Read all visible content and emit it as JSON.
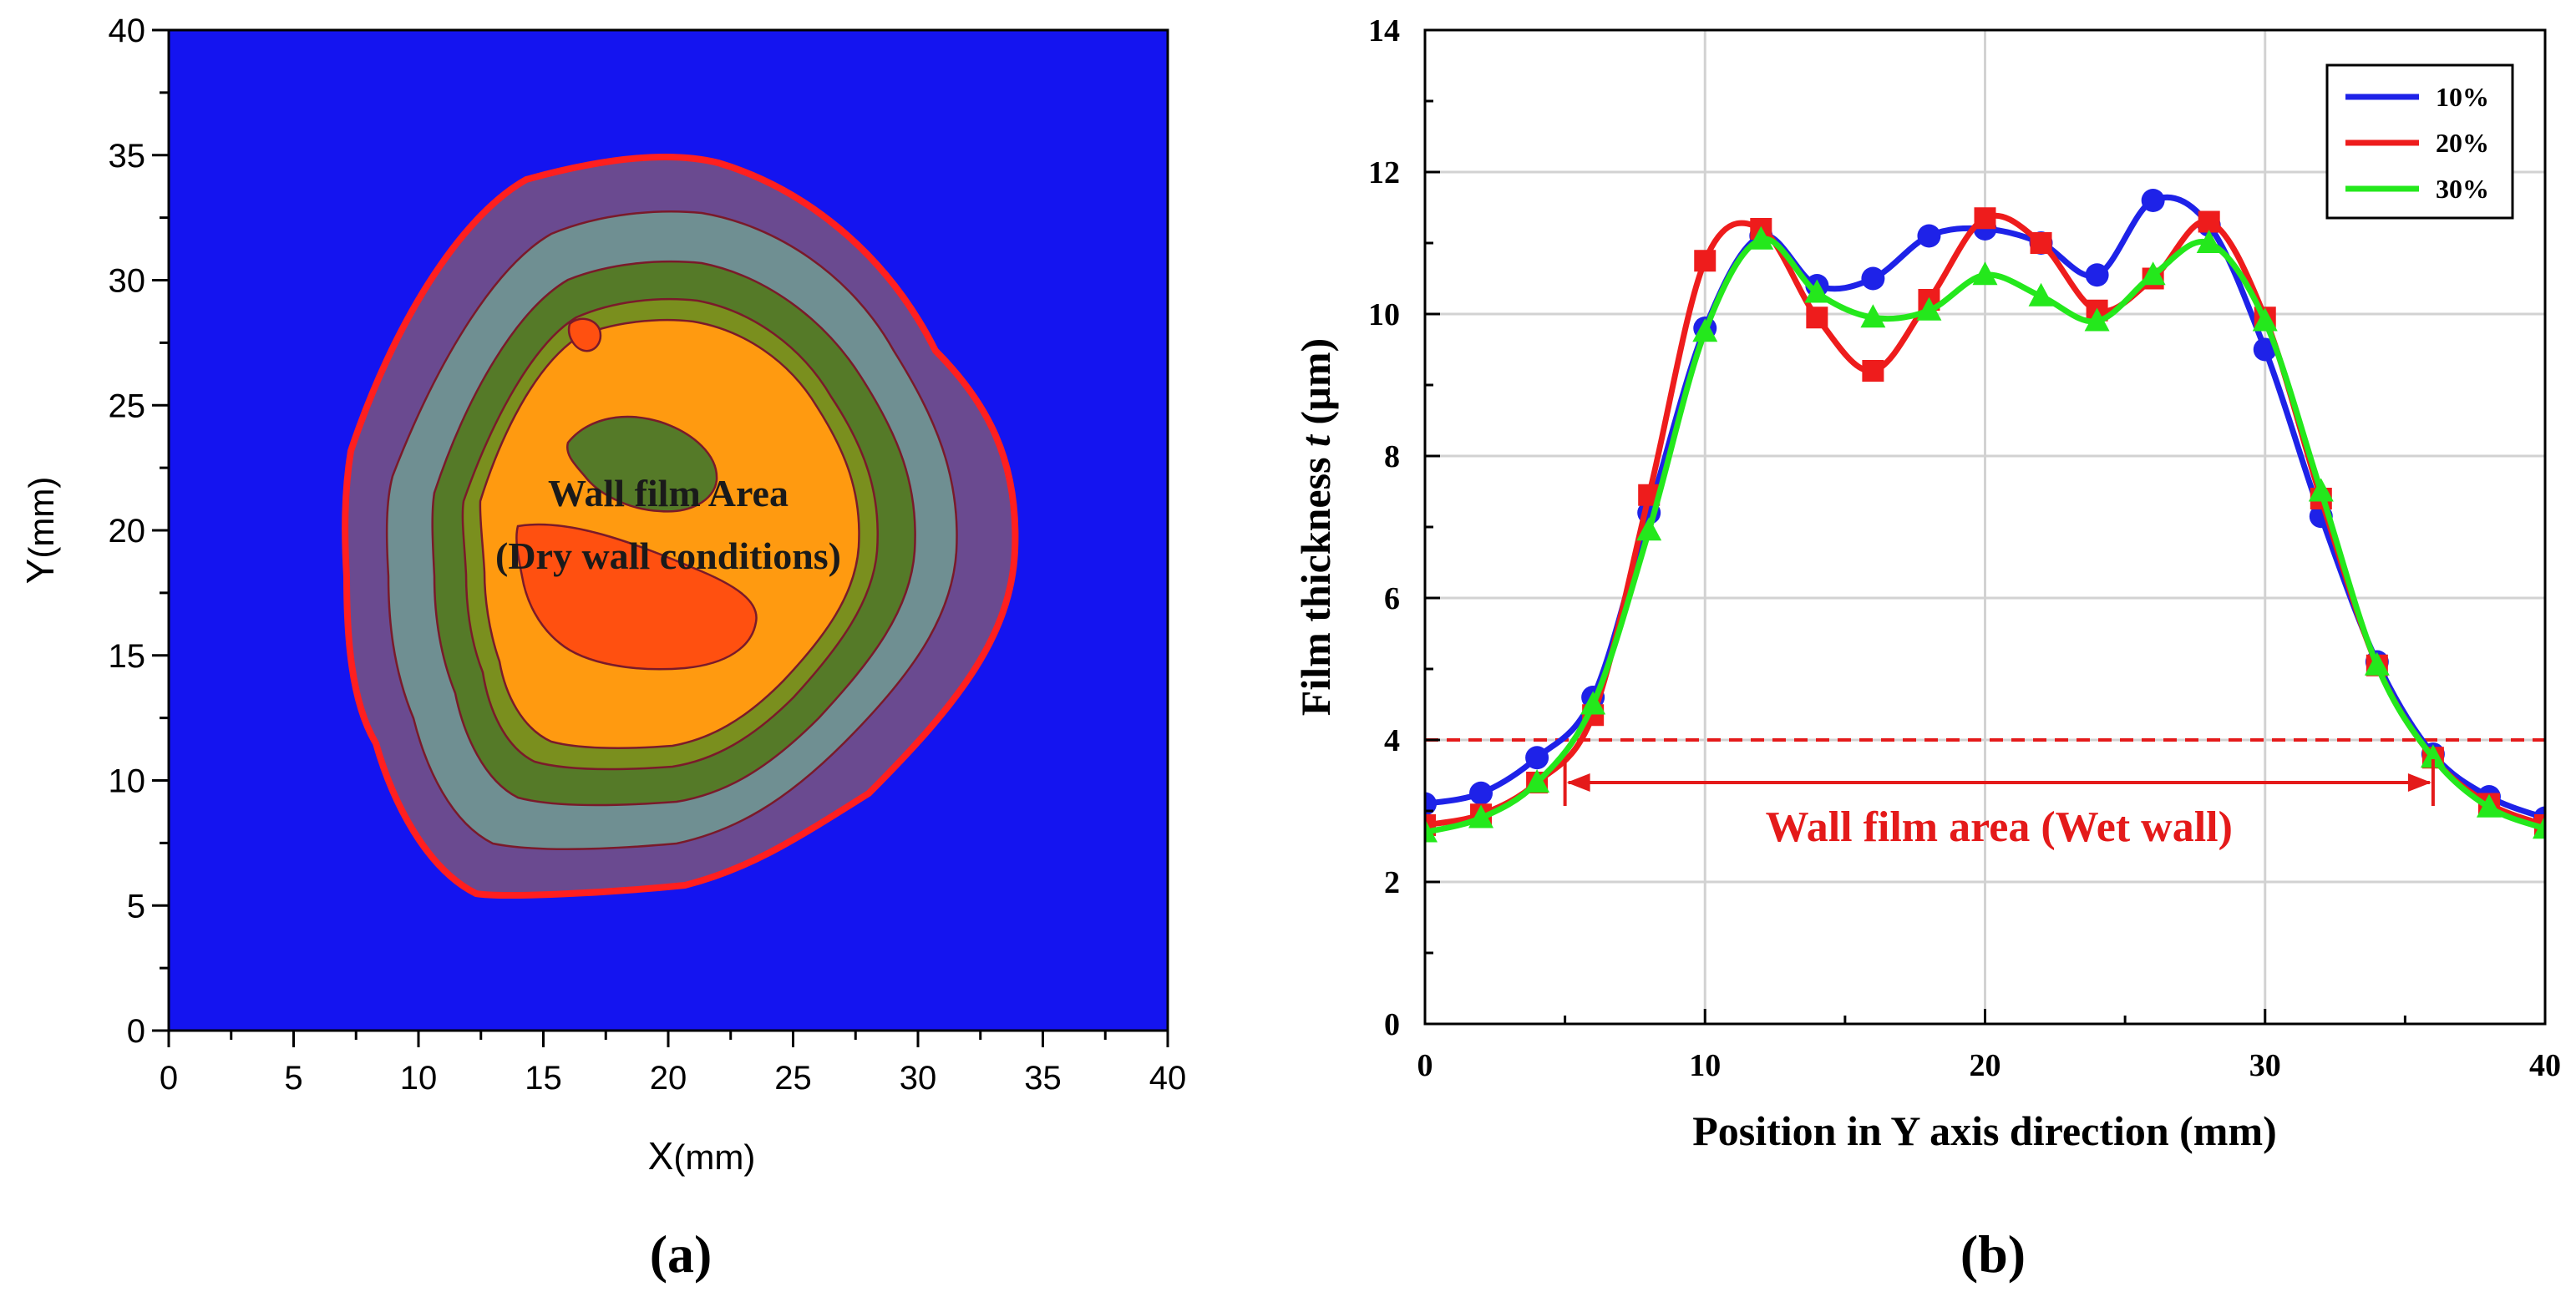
{
  "panel_a": {
    "caption": "(a)",
    "xlabel": "X",
    "xunit": "(mm)",
    "ylabel": "Y",
    "yunit": "(mm)",
    "annotation_line1": "Wall film Area",
    "annotation_line2": "(Dry wall conditions)"
  },
  "panel_b": {
    "caption": "(b)",
    "xlabel": "Position in Y axis direction (mm)",
    "ylabel_prefix": "Film thickness ",
    "ylabel_italic": "t",
    "ylabel_suffix": " (µm)",
    "annotation": "Wall film area (Wet wall)"
  },
  "colors": {
    "background": "#1414f0",
    "contour_outer": "#6a4a90",
    "contour_2": "#6f8f92",
    "contour_3": "#557a28",
    "contour_4": "#7a8f1e",
    "contour_5": "#ff9a10",
    "contour_peak": "#ff5010",
    "boundary": "#ff1f1f",
    "series_10": "#1e22e8",
    "series_20": "#ee1c1c",
    "series_30": "#24e81c",
    "threshold": "#e41a1a"
  },
  "chart_data": [
    {
      "type": "heatmap",
      "title": "(a)",
      "xlabel": "X(mm)",
      "ylabel": "Y(mm)",
      "xlim": [
        0,
        40
      ],
      "ylim": [
        0,
        40
      ],
      "xticks": [
        0,
        5,
        10,
        15,
        20,
        25,
        30,
        35,
        40
      ],
      "yticks": [
        0,
        5,
        10,
        15,
        20,
        25,
        30,
        35,
        40
      ],
      "annotations": [
        "Wall film Area",
        "(Dry wall conditions)"
      ]
    },
    {
      "type": "line",
      "title": "(b)",
      "xlabel": "Position in Y axis direction (mm)",
      "ylabel": "Film thickness t (µm)",
      "xlim": [
        0,
        40
      ],
      "ylim": [
        0,
        14
      ],
      "xticks": [
        0,
        10,
        20,
        30,
        40
      ],
      "yticks": [
        0,
        2,
        4,
        6,
        8,
        10,
        12,
        14
      ],
      "grid": true,
      "legend_position": "top-right",
      "x": [
        0,
        2,
        4,
        6,
        8,
        10,
        12,
        14,
        16,
        18,
        20,
        22,
        24,
        26,
        28,
        30,
        32,
        34,
        36,
        38,
        40
      ],
      "series": [
        {
          "name": "10%",
          "marker": "circle",
          "values": [
            3.1,
            3.25,
            3.75,
            4.6,
            7.2,
            9.8,
            11.1,
            10.4,
            10.5,
            11.1,
            11.2,
            11.0,
            10.55,
            11.6,
            11.25,
            9.5,
            7.15,
            5.1,
            3.8,
            3.2,
            2.9
          ]
        },
        {
          "name": "20%",
          "marker": "square",
          "values": [
            2.8,
            2.95,
            3.4,
            4.35,
            7.45,
            10.75,
            11.2,
            9.95,
            9.2,
            10.2,
            11.35,
            11.0,
            10.05,
            10.5,
            11.3,
            9.95,
            7.4,
            5.05,
            3.75,
            3.1,
            2.8
          ]
        },
        {
          "name": "30%",
          "marker": "triangle",
          "values": [
            2.7,
            2.9,
            3.4,
            4.5,
            6.95,
            9.75,
            11.05,
            10.3,
            9.95,
            10.05,
            10.55,
            10.25,
            9.9,
            10.55,
            11.0,
            9.9,
            7.5,
            5.05,
            3.75,
            3.05,
            2.75
          ]
        }
      ],
      "threshold_line": {
        "y": 4,
        "style": "dashed"
      },
      "span_arrow": {
        "from": 5,
        "to": 36,
        "y": 3.4,
        "label": "Wall film area (Wet wall)"
      }
    }
  ]
}
